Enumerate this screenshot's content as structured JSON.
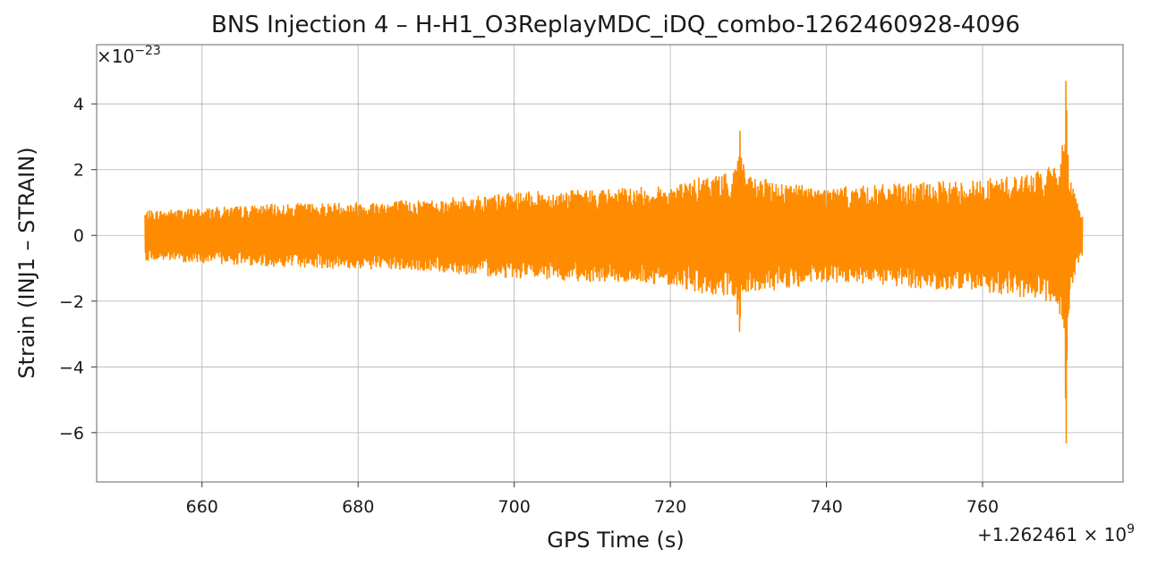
{
  "chart_data": {
    "type": "line",
    "title": "BNS Injection 4 – H-H1_O3ReplayMDC_iDQ_combo-1262460928-4096",
    "xlabel": "GPS Time (s)",
    "ylabel": "Strain (INJ1 – STRAIN)",
    "x_offset_label": "+1.262461",
    "x_offset_exp": "9",
    "y_scale_label": "×10",
    "y_scale_exp": "−23",
    "xlim": [
      646.5,
      778
    ],
    "ylim": [
      -7.5,
      5.8
    ],
    "x_ticks": [
      660,
      680,
      700,
      720,
      740,
      760
    ],
    "x_tick_labels": [
      "660",
      "680",
      "700",
      "720",
      "740",
      "760"
    ],
    "y_ticks": [
      4,
      2,
      0,
      -2,
      -4,
      -6
    ],
    "y_tick_labels": [
      "4",
      "2",
      "0",
      "−2",
      "−4",
      "−6"
    ],
    "grid": true,
    "line_color": "#ff8c00",
    "series": [
      {
        "x_start": 652.7,
        "x_end": 772.8,
        "envelope": [
          [
            652.7,
            0.75
          ],
          [
            670,
            0.95
          ],
          [
            690,
            1.1
          ],
          [
            700,
            1.3
          ],
          [
            720,
            1.5
          ],
          [
            726,
            1.9
          ],
          [
            740,
            1.45
          ],
          [
            760,
            1.7
          ],
          [
            766,
            1.9
          ],
          [
            770.5,
            2.2
          ],
          [
            772.2,
            1.0
          ],
          [
            772.8,
            0.6
          ]
        ],
        "spikes": [
          {
            "x": 728.9,
            "max": 3.4,
            "min": -3.3
          },
          {
            "x": 770.7,
            "max": 5.2,
            "min": -6.9
          }
        ]
      }
    ]
  }
}
